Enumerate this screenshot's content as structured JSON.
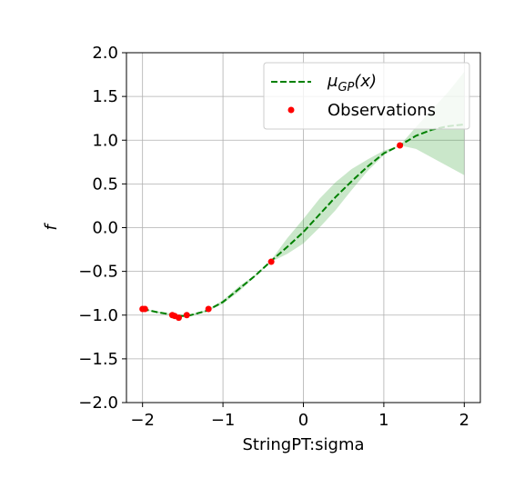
{
  "chart_data": {
    "type": "line",
    "xlabel": "StringPT:sigma",
    "ylabel": "f",
    "xlim": [
      -2.2,
      2.2
    ],
    "ylim": [
      -2.0,
      2.0
    ],
    "xticks": [
      -2,
      -1,
      0,
      1,
      2
    ],
    "xtick_labels": [
      "−2",
      "−1",
      "0",
      "1",
      "2"
    ],
    "yticks": [
      -2.0,
      -1.5,
      -1.0,
      -0.5,
      0.0,
      0.5,
      1.0,
      1.5,
      2.0
    ],
    "ytick_labels": [
      "−2.0",
      "−1.5",
      "−1.0",
      "−0.5",
      "0.0",
      "0.5",
      "1.0",
      "1.5",
      "2.0"
    ],
    "grid": true,
    "legend_position": "top-right",
    "series": [
      {
        "name": "μGP(x)",
        "kind": "line",
        "style": "dashed",
        "color": "#008000",
        "x": [
          -2.0,
          -1.8,
          -1.6,
          -1.5,
          -1.4,
          -1.2,
          -1.0,
          -0.8,
          -0.6,
          -0.4,
          -0.2,
          0.0,
          0.2,
          0.4,
          0.6,
          0.8,
          1.0,
          1.2,
          1.4,
          1.6,
          1.8,
          2.0
        ],
        "y": [
          -0.93,
          -0.97,
          -1.0,
          -1.01,
          -1.0,
          -0.95,
          -0.85,
          -0.7,
          -0.55,
          -0.38,
          -0.22,
          -0.05,
          0.15,
          0.35,
          0.53,
          0.7,
          0.85,
          0.94,
          1.05,
          1.12,
          1.16,
          1.18
        ]
      },
      {
        "name": "confidence band",
        "kind": "band",
        "color": "#2ca02c",
        "x": [
          -2.0,
          -1.8,
          -1.6,
          -1.5,
          -1.4,
          -1.2,
          -1.0,
          -0.8,
          -0.6,
          -0.4,
          -0.2,
          0.0,
          0.2,
          0.4,
          0.6,
          0.8,
          1.0,
          1.2,
          1.4,
          1.6,
          1.8,
          2.0
        ],
        "lower": [
          -0.93,
          -0.98,
          -1.01,
          -1.02,
          -1.01,
          -0.96,
          -0.87,
          -0.73,
          -0.56,
          -0.39,
          -0.3,
          -0.18,
          0.0,
          0.2,
          0.43,
          0.65,
          0.83,
          0.94,
          0.9,
          0.8,
          0.7,
          0.6
        ],
        "upper": [
          -0.93,
          -0.96,
          -0.99,
          -1.0,
          -0.99,
          -0.94,
          -0.83,
          -0.67,
          -0.54,
          -0.37,
          -0.12,
          0.1,
          0.33,
          0.52,
          0.67,
          0.78,
          0.88,
          0.94,
          1.15,
          1.35,
          1.55,
          1.78
        ]
      },
      {
        "name": "Observations",
        "kind": "scatter",
        "color": "#ff0000",
        "x": [
          -2.0,
          -1.97,
          -1.63,
          -1.6,
          -1.55,
          -1.45,
          -1.18,
          -0.4,
          1.2
        ],
        "y": [
          -0.93,
          -0.93,
          -1.0,
          -1.01,
          -1.03,
          -1.0,
          -0.93,
          -0.39,
          0.94
        ]
      }
    ],
    "legend": [
      {
        "label_base": "μ",
        "label_sub": "GP",
        "label_tail": "(x)",
        "marker": "dashed-line",
        "color": "#008000"
      },
      {
        "label": "Observations",
        "marker": "dot",
        "color": "#ff0000"
      }
    ]
  }
}
